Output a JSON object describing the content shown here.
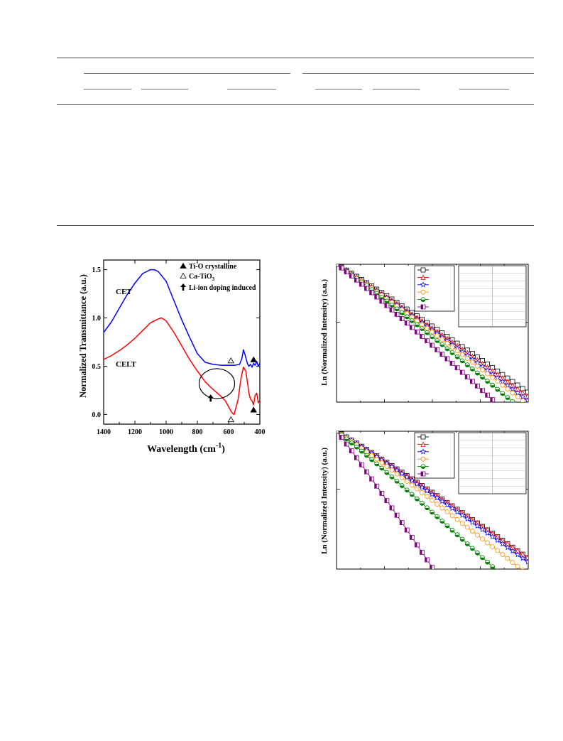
{
  "table": {
    "description": "blank table framework (rules only, no visible text)"
  },
  "chart_data": [
    {
      "type": "line",
      "xlabel": "Wavelength (cm",
      "xlabel_sup": "-1",
      "xlabel_tail": ")",
      "ylabel": "Normalized Transmittance (a.u.)",
      "xlim": [
        1400,
        400
      ],
      "ylim": [
        -0.1,
        1.6
      ],
      "xticks": [
        1400,
        1200,
        1000,
        800,
        600,
        400
      ],
      "yticks": [
        0.0,
        0.5,
        1.0,
        1.5
      ],
      "ytick_labels": [
        "0.0",
        "0.5",
        "1.0",
        "1.5"
      ],
      "legend": [
        {
          "marker": "filled-triangle",
          "label": "Ti-O crystalline"
        },
        {
          "marker": "open-triangle",
          "label": "Ca-TiO",
          "sub": "3"
        },
        {
          "marker": "arrow-up",
          "label": "Li-ion doping induced"
        }
      ],
      "series": [
        {
          "name": "CET",
          "color": "#0000ff",
          "x": [
            1400,
            1350,
            1300,
            1250,
            1200,
            1150,
            1100,
            1075,
            1050,
            1000,
            950,
            900,
            850,
            800,
            750,
            700,
            650,
            600,
            560,
            530,
            515,
            505,
            495,
            480,
            470,
            460,
            450,
            440,
            430,
            420,
            410,
            400
          ],
          "y": [
            0.85,
            0.96,
            1.1,
            1.24,
            1.36,
            1.46,
            1.5,
            1.5,
            1.48,
            1.38,
            1.18,
            0.98,
            0.8,
            0.63,
            0.54,
            0.52,
            0.51,
            0.51,
            0.51,
            0.52,
            0.58,
            0.67,
            0.62,
            0.53,
            0.5,
            0.52,
            0.49,
            0.53,
            0.51,
            0.55,
            0.5,
            0.53
          ]
        },
        {
          "name": "CELT",
          "color": "#ff0000",
          "x": [
            1400,
            1350,
            1300,
            1250,
            1200,
            1150,
            1100,
            1050,
            1030,
            1000,
            950,
            900,
            850,
            800,
            750,
            720,
            700,
            650,
            620,
            600,
            580,
            565,
            540,
            520,
            505,
            490,
            480,
            470,
            460,
            450,
            440,
            430,
            420,
            410,
            400
          ],
          "y": [
            0.57,
            0.61,
            0.66,
            0.72,
            0.79,
            0.87,
            0.95,
            0.99,
            1.0,
            0.97,
            0.85,
            0.71,
            0.57,
            0.45,
            0.34,
            0.29,
            0.26,
            0.19,
            0.14,
            0.08,
            0.02,
            0.0,
            0.15,
            0.38,
            0.49,
            0.45,
            0.34,
            0.22,
            0.16,
            0.14,
            0.1,
            0.2,
            0.22,
            0.12,
            0.15
          ]
        }
      ],
      "annotations": [
        {
          "kind": "filled-triangle",
          "x": 440,
          "y": 0.57
        },
        {
          "kind": "open-triangle",
          "x": 585,
          "y": 0.56
        },
        {
          "kind": "filled-triangle",
          "x": 440,
          "y": 0.05
        },
        {
          "kind": "open-triangle",
          "x": 585,
          "y": -0.05
        },
        {
          "kind": "ellipse",
          "x": 675,
          "y": 0.32
        },
        {
          "kind": "arrow-up",
          "x": 715,
          "y": 0.17
        }
      ]
    },
    {
      "type": "line",
      "ylabel": "Ln (Normalized Intensity) (a.u.)",
      "xlim": [
        0,
        1
      ],
      "ylim": [
        0,
        1
      ],
      "series": [
        {
          "name": "",
          "color": "#000000",
          "marker": "square-open",
          "slope": 0.93
        },
        {
          "name": "",
          "color": "#ff0000",
          "marker": "triangle-open",
          "slope": 0.96
        },
        {
          "name": "",
          "color": "#0000ff",
          "marker": "star-open",
          "slope": 0.99
        },
        {
          "name": "",
          "color": "#ff8c00",
          "marker": "circle-open",
          "slope": 1.02
        },
        {
          "name": "",
          "color": "#008000",
          "marker": "circle-half",
          "slope": 1.09
        },
        {
          "name": "",
          "color": "#800080",
          "marker": "square-half",
          "slope": 1.22
        }
      ]
    },
    {
      "type": "line",
      "ylabel": "Ln (Normalized Intensity) (a.u.)",
      "xlim": [
        0,
        1
      ],
      "ylim": [
        0,
        1
      ],
      "series": [
        {
          "name": "",
          "color": "#000000",
          "marker": "square-open",
          "slope": 0.92
        },
        {
          "name": "",
          "color": "#ff0000",
          "marker": "triangle-open",
          "slope": 0.92
        },
        {
          "name": "",
          "color": "#0000ff",
          "marker": "star-open",
          "slope": 0.95
        },
        {
          "name": "",
          "color": "#ff8c00",
          "marker": "circle-open",
          "slope": 1.04
        },
        {
          "name": "",
          "color": "#008000",
          "marker": "circle-half",
          "slope": 1.22
        },
        {
          "name": "",
          "color": "#800080",
          "marker": "square-half",
          "slope": 2.05
        }
      ]
    }
  ]
}
